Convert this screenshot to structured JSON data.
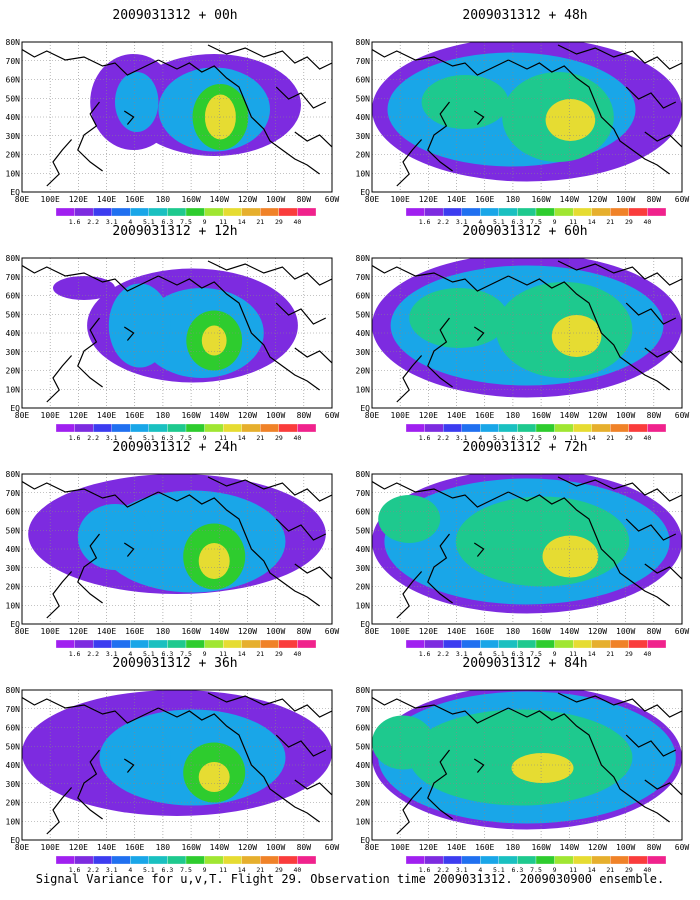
{
  "figure": {
    "caption": "Signal Variance for u,v,T. Flight 29. Observation time 2009031312. 2009030900 ensemble.",
    "lon_labels": [
      "80E",
      "100E",
      "120E",
      "140E",
      "160E",
      "180",
      "160W",
      "140W",
      "120W",
      "100W",
      "80W",
      "60W"
    ],
    "lat_labels": [
      "EQ",
      "10N",
      "20N",
      "30N",
      "40N",
      "50N",
      "60N",
      "70N",
      "80N"
    ],
    "colorbar": {
      "labels": [
        "1.6",
        "2.2",
        "3.1",
        "4",
        "5.1",
        "6.3",
        "7.5",
        "9",
        "11",
        "14",
        "21",
        "29",
        "40"
      ],
      "colors": [
        "#a020f0",
        "#7d2be0",
        "#3c3cf0",
        "#2070f0",
        "#19a6e8",
        "#1ac0c0",
        "#1ec98e",
        "#2ecc2e",
        "#a0e632",
        "#e6dc32",
        "#e6af2d",
        "#f08228",
        "#fa3c3c",
        "#f0228c"
      ]
    },
    "panels": [
      {
        "title": "2009031312 + 00h",
        "col": 0,
        "row": 0
      },
      {
        "title": "2009031312 + 48h",
        "col": 1,
        "row": 0
      },
      {
        "title": "2009031312 + 12h",
        "col": 0,
        "row": 1
      },
      {
        "title": "2009031312 + 60h",
        "col": 1,
        "row": 1
      },
      {
        "title": "2009031312 + 24h",
        "col": 0,
        "row": 2
      },
      {
        "title": "2009031312 + 72h",
        "col": 1,
        "row": 2
      },
      {
        "title": "2009031312 + 36h",
        "col": 0,
        "row": 3
      },
      {
        "title": "2009031312 + 84h",
        "col": 1,
        "row": 3
      }
    ]
  }
}
